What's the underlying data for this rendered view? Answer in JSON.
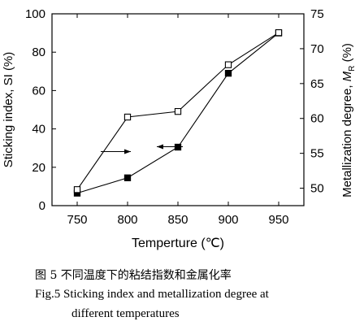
{
  "chart_data": {
    "type": "line",
    "x": [
      750,
      800,
      850,
      900,
      950
    ],
    "xlabel": "Temperture (℃)",
    "xlim": [
      725,
      975
    ],
    "xticks": [
      750,
      800,
      850,
      900,
      950
    ],
    "ylabel_left": "Sticking index, SI (%)",
    "ylim_left": [
      0,
      100
    ],
    "yticks_left": [
      0,
      20,
      40,
      60,
      80,
      100
    ],
    "ylabel_right_main": "Metallization degree, ",
    "ylabel_right_symbol": "M",
    "ylabel_right_sub": "R",
    "ylabel_right_tail": " (%)",
    "ylim_right": [
      47.5,
      75
    ],
    "yticks_right": [
      50,
      55,
      60,
      65,
      70,
      75
    ],
    "series": [
      {
        "marker": "filled-square",
        "axis": "left",
        "values": [
          6.5,
          14.5,
          30.5,
          69,
          90
        ]
      },
      {
        "marker": "open-square",
        "axis": "right",
        "values": [
          49.8,
          60.2,
          61,
          67.7,
          72.3
        ]
      }
    ],
    "arrows": [
      {
        "direction": "right",
        "points_to_axis": "right"
      },
      {
        "direction": "left",
        "points_to_axis": "left"
      }
    ],
    "colors": {
      "line": "#000000",
      "background": "#ffffff"
    }
  },
  "caption": {
    "cn": "图 5  不同温度下的粘结指数和金属化率",
    "en_line1": "Fig.5 Sticking index and metallization degree at",
    "en_line2": "different temperatures"
  }
}
